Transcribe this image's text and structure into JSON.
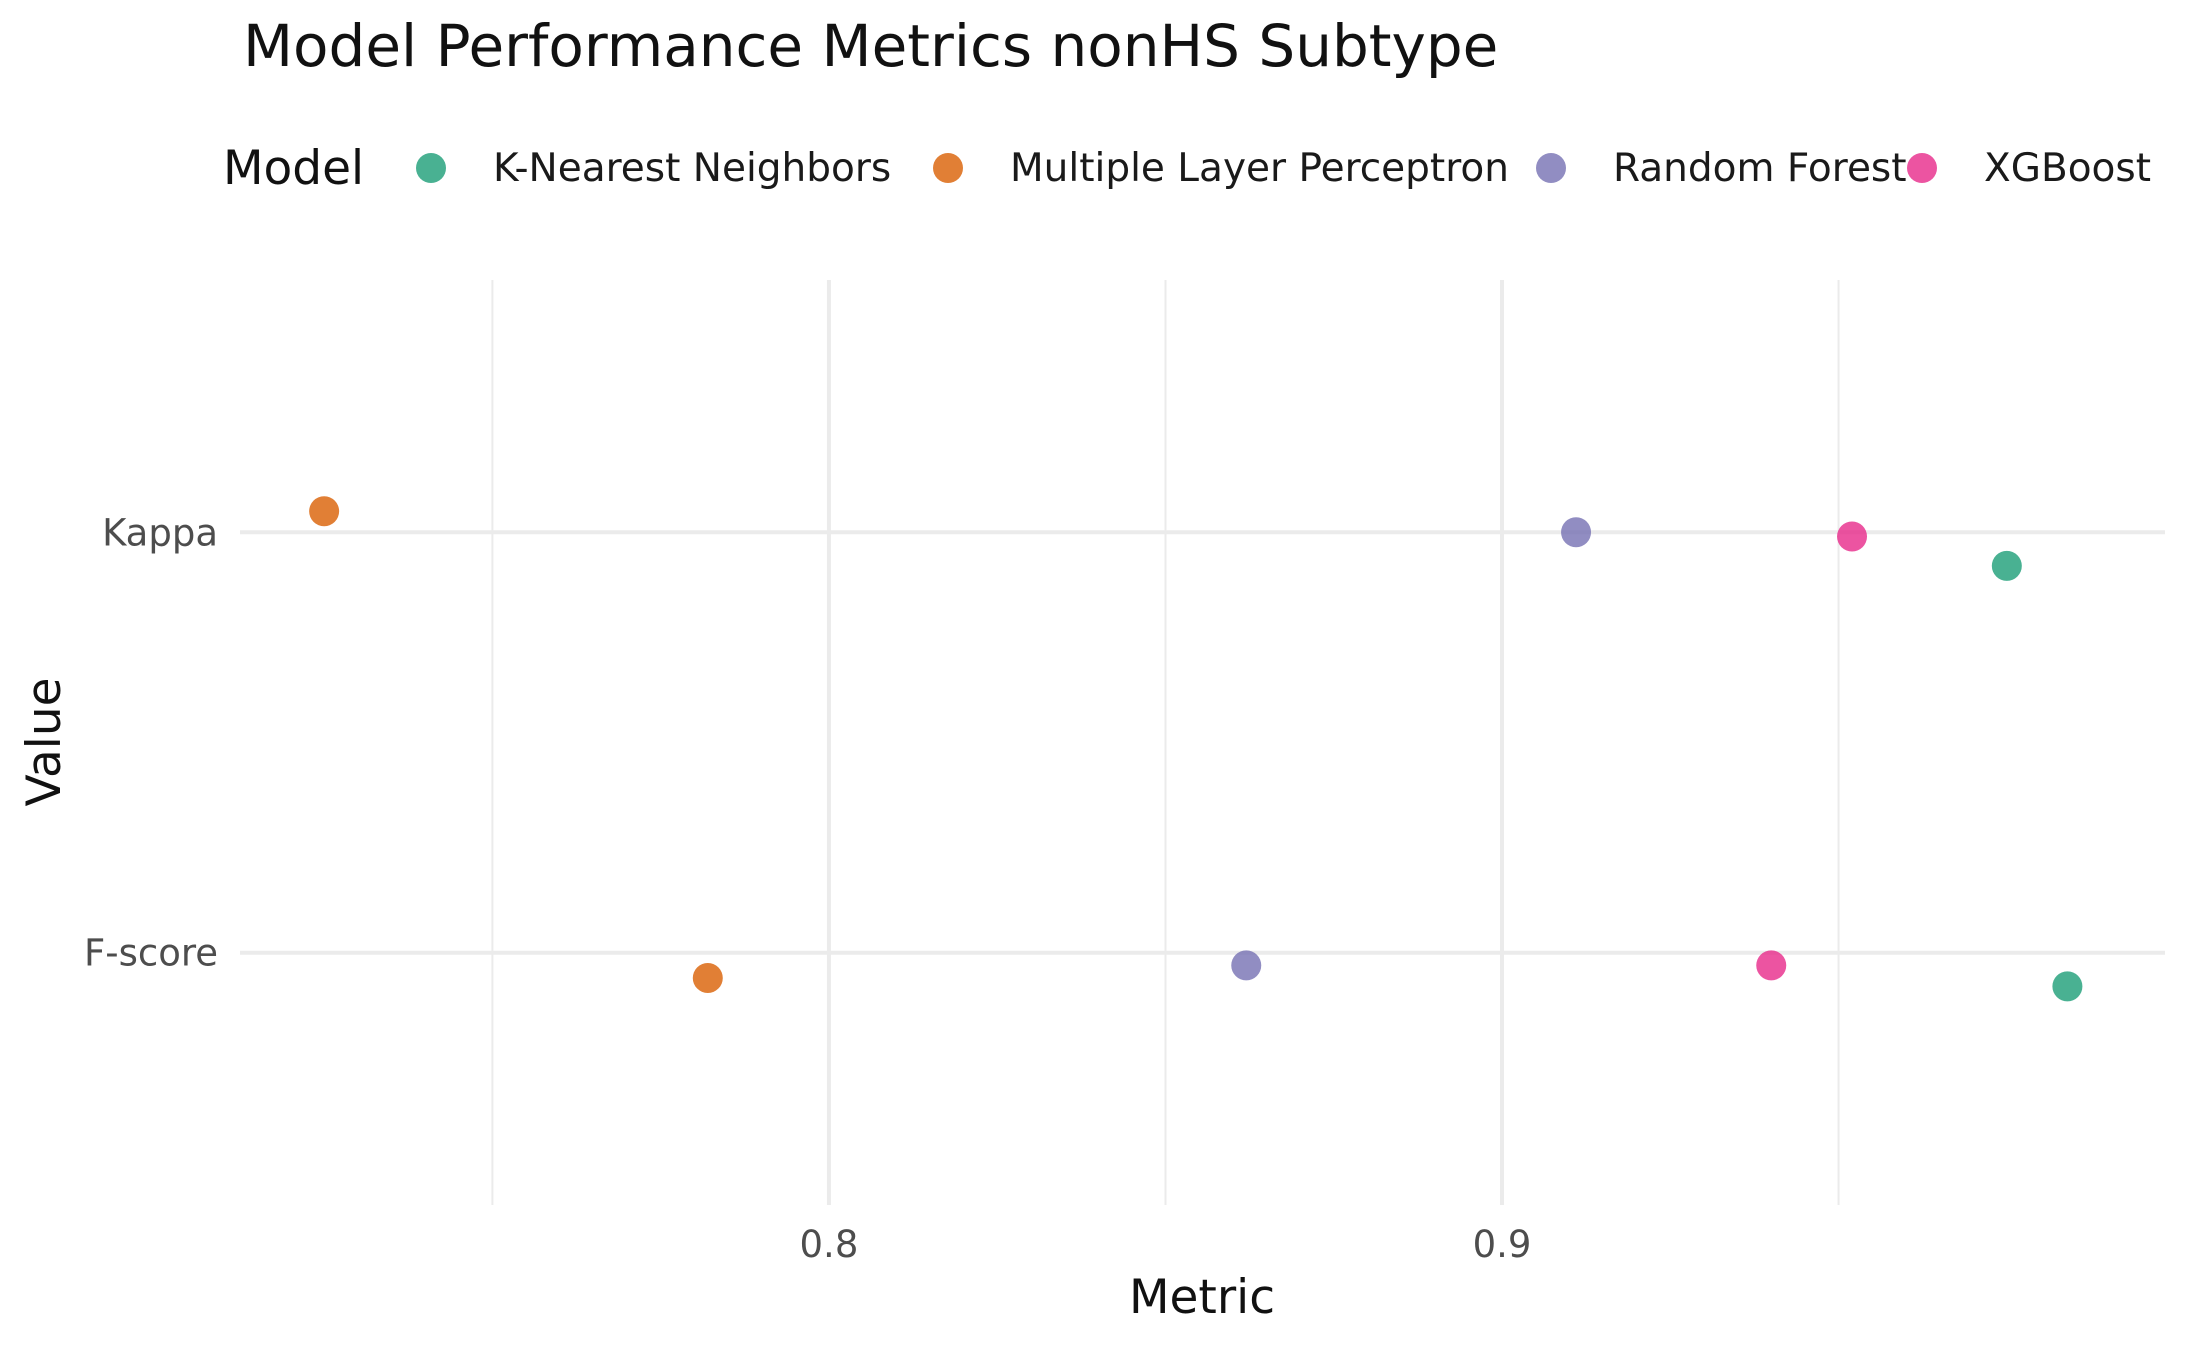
{
  "chart_data": {
    "type": "scatter",
    "title": "Model Performance Metrics nonHS Subtype",
    "xlabel": "Metric",
    "ylabel": "Value",
    "legend": {
      "title": "Model",
      "position": "top",
      "entries": [
        {
          "name": "K-Nearest Neighbors",
          "color": "#1B9E77"
        },
        {
          "name": "Multiple Layer Perceptron",
          "color": "#D95F02"
        },
        {
          "name": "Random Forest",
          "color": "#7570B3"
        },
        {
          "name": "XGBoost",
          "color": "#E7298A"
        }
      ]
    },
    "x_axis": {
      "range": [
        0.7125,
        0.9985
      ],
      "ticks": [
        0.8,
        0.9
      ],
      "tick_labels": [
        "0.8",
        "0.9"
      ],
      "minor_ticks": [
        0.75,
        0.85,
        0.95
      ]
    },
    "y_axis": {
      "categories": [
        "F-score",
        "Kappa"
      ],
      "range": [
        0.4,
        2.6
      ]
    },
    "grid": true,
    "point_opacity": 0.8,
    "series": [
      {
        "name": "K-Nearest Neighbors",
        "points": [
          {
            "category": "Kappa",
            "x": 0.975,
            "y": 1.92
          },
          {
            "category": "F-score",
            "x": 0.984,
            "y": 0.92
          }
        ]
      },
      {
        "name": "Multiple Layer Perceptron",
        "points": [
          {
            "category": "Kappa",
            "x": 0.725,
            "y": 2.05
          },
          {
            "category": "F-score",
            "x": 0.782,
            "y": 0.94
          }
        ]
      },
      {
        "name": "Random Forest",
        "points": [
          {
            "category": "Kappa",
            "x": 0.911,
            "y": 2.0
          },
          {
            "category": "F-score",
            "x": 0.862,
            "y": 0.97
          }
        ]
      },
      {
        "name": "XGBoost",
        "points": [
          {
            "category": "Kappa",
            "x": 0.952,
            "y": 1.99
          },
          {
            "category": "F-score",
            "x": 0.94,
            "y": 0.97
          }
        ]
      }
    ]
  }
}
